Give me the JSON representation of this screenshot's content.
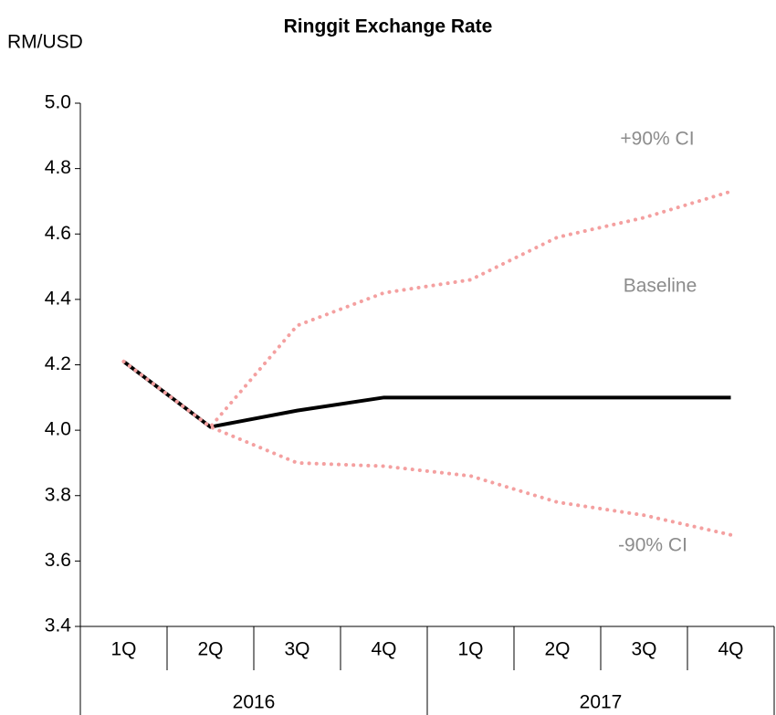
{
  "chart_data": {
    "type": "line",
    "title": "Ringgit Exchange Rate",
    "y_label": "RM/USD",
    "categories": [
      "1Q",
      "2Q",
      "3Q",
      "4Q",
      "1Q",
      "2Q",
      "3Q",
      "4Q"
    ],
    "x_groups": [
      "2016",
      "2017"
    ],
    "series": [
      {
        "name": "Baseline",
        "color": "#000000",
        "style": "solid",
        "values": [
          4.21,
          4.01,
          4.06,
          4.1,
          4.1,
          4.1,
          4.1,
          4.1
        ]
      },
      {
        "name": "+90% CI",
        "color": "#f4a0a0",
        "style": "dotted",
        "values": [
          4.21,
          4.01,
          4.32,
          4.42,
          4.46,
          4.59,
          4.65,
          4.73
        ]
      },
      {
        "name": "-90% CI",
        "color": "#f4a0a0",
        "style": "dotted",
        "values": [
          4.21,
          4.01,
          3.9,
          3.89,
          3.86,
          3.78,
          3.74,
          3.68
        ]
      }
    ],
    "ylim": [
      3.4,
      5.0
    ],
    "yticks": [
      3.4,
      3.6,
      3.8,
      {
        "value": 4.0,
        "label": "4.0"
      },
      4.2,
      4.4,
      4.6,
      4.8,
      {
        "value": 5.0,
        "label": "5.0"
      }
    ]
  }
}
